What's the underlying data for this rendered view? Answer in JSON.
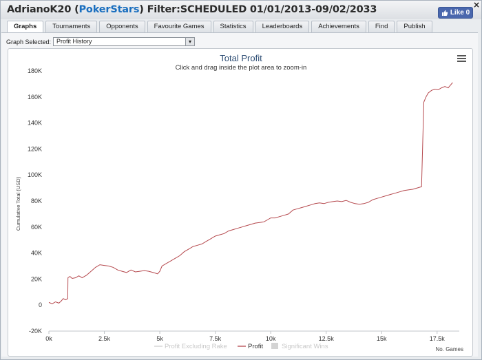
{
  "window": {
    "player": "AdrianoK20",
    "site": "PokerStars",
    "filter": "Filter:SCHEDULED 01/01/2013-09/02/2033",
    "like_label": "Like 0",
    "close_glyph": "×"
  },
  "tabs": [
    {
      "label": "Graphs",
      "active": true
    },
    {
      "label": "Tournaments",
      "active": false
    },
    {
      "label": "Opponents",
      "active": false
    },
    {
      "label": "Favourite Games",
      "active": false
    },
    {
      "label": "Statistics",
      "active": false
    },
    {
      "label": "Leaderboards",
      "active": false
    },
    {
      "label": "Achievements",
      "active": false
    },
    {
      "label": "Find",
      "active": false
    },
    {
      "label": "Publish",
      "active": false
    }
  ],
  "graph_select": {
    "label": "Graph Selected:",
    "value": "Profit History"
  },
  "icons": {
    "menu": "hamburger-menu-icon",
    "like": "thumbs-up-icon",
    "dropdown": "chevron-down-icon"
  },
  "colors": {
    "profit_line": "#b5484d",
    "title": "#2c4c73",
    "accent": "#1b6fbf"
  },
  "chart_data": {
    "type": "line",
    "title": "Total Profit",
    "subtitle": "Click and drag inside the plot area to zoom-in",
    "xlabel": "No. Games",
    "ylabel": "Cumulative Total (USD)",
    "xlim": [
      0,
      18500
    ],
    "ylim": [
      -20000,
      180000
    ],
    "x_ticks": [
      "0k",
      "2.5k",
      "5k",
      "7.5k",
      "10k",
      "12.5k",
      "15k",
      "17.5k"
    ],
    "y_ticks": [
      "-20K",
      "0",
      "20K",
      "40K",
      "60K",
      "80K",
      "100K",
      "120K",
      "140K",
      "160K",
      "180K"
    ],
    "grid": false,
    "legend_position": "bottom",
    "legend": [
      {
        "name": "Profit Excluding Rake",
        "enabled": false
      },
      {
        "name": "Profit",
        "enabled": true
      },
      {
        "name": "Significant Wins",
        "enabled": false
      }
    ],
    "series": [
      {
        "name": "Profit",
        "x": [
          0,
          150,
          300,
          450,
          550,
          650,
          750,
          850,
          860,
          950,
          1050,
          1200,
          1350,
          1500,
          1700,
          1900,
          2100,
          2300,
          2500,
          2700,
          2900,
          3100,
          3300,
          3500,
          3700,
          3900,
          4100,
          4300,
          4500,
          4700,
          4900,
          5000,
          5100,
          5300,
          5500,
          5700,
          5900,
          6100,
          6300,
          6500,
          6700,
          6900,
          7100,
          7300,
          7500,
          7700,
          7900,
          8100,
          8300,
          8500,
          8700,
          8900,
          9100,
          9300,
          9500,
          9700,
          9900,
          10000,
          10200,
          10400,
          10600,
          10800,
          11000,
          11200,
          11400,
          11600,
          11800,
          12000,
          12200,
          12400,
          12600,
          12800,
          13000,
          13200,
          13400,
          13600,
          13800,
          14000,
          14200,
          14400,
          14600,
          14800,
          15000,
          15200,
          15400,
          15600,
          15800,
          16000,
          16200,
          16400,
          16600,
          16800,
          16900,
          16950,
          17000,
          17100,
          17250,
          17400,
          17550,
          17700,
          17850,
          18000,
          18100,
          18200
        ],
        "values": [
          2000,
          1000,
          2500,
          1500,
          3000,
          5000,
          4000,
          5000,
          21000,
          22000,
          20500,
          21000,
          22500,
          21000,
          23000,
          26000,
          29000,
          31000,
          30500,
          30000,
          29000,
          27000,
          26000,
          25000,
          27000,
          25500,
          26000,
          26500,
          26000,
          25000,
          24000,
          26000,
          30000,
          32000,
          34000,
          36000,
          38000,
          41000,
          43000,
          45000,
          46000,
          47000,
          49000,
          51000,
          53000,
          54000,
          55000,
          57000,
          58000,
          59000,
          60000,
          61000,
          62000,
          63000,
          63500,
          64000,
          66000,
          67000,
          67000,
          68000,
          69000,
          70000,
          73000,
          74000,
          75000,
          76000,
          77000,
          78000,
          78500,
          78000,
          79000,
          79500,
          80000,
          79500,
          80500,
          79000,
          78000,
          77500,
          78000,
          79000,
          81000,
          82000,
          83000,
          84000,
          85000,
          86000,
          87000,
          88000,
          88500,
          89000,
          90000,
          91000,
          156000,
          158000,
          160000,
          163000,
          165000,
          166000,
          165500,
          167000,
          168000,
          167000,
          169000,
          171000
        ]
      }
    ]
  }
}
